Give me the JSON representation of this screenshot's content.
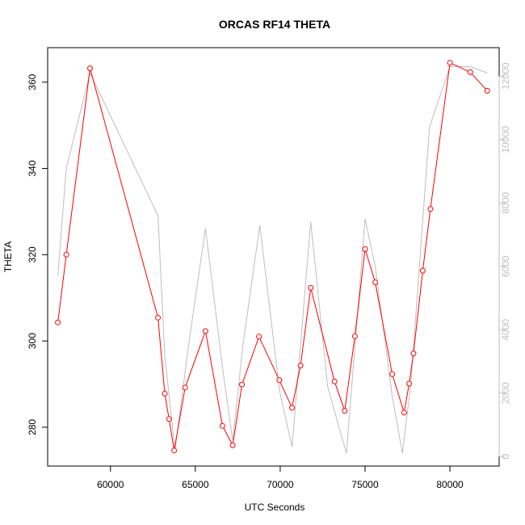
{
  "chart_data": {
    "type": "line",
    "title": "ORCAS RF14 THETA",
    "xlabel": "UTC Seconds",
    "ylabel": "THETA",
    "xlim": [
      56300,
      82900
    ],
    "ylim": [
      271,
      368
    ],
    "y2lim": [
      -300,
      12900
    ],
    "x_ticks": [
      60000,
      65000,
      70000,
      75000,
      80000
    ],
    "y_ticks": [
      280,
      300,
      320,
      340,
      360
    ],
    "y2_ticks": [
      0,
      2000,
      4000,
      6000,
      8000,
      10000,
      12000
    ],
    "grid": false,
    "legend": "none",
    "colors": {
      "theta": "#ff0000",
      "altitude": "#bebebe",
      "frame": "#000000"
    },
    "series": [
      {
        "axis": "left",
        "style": "line-with-open-circles",
        "x": [
          56900,
          57400,
          58800,
          62800,
          63200,
          63450,
          63750,
          64400,
          65600,
          66600,
          67200,
          67750,
          68750,
          69950,
          70700,
          71200,
          71800,
          73200,
          73800,
          74400,
          75000,
          75600,
          76600,
          77300,
          77600,
          77850,
          78400,
          78850,
          80000,
          81200,
          82200
        ],
        "values": [
          304.3,
          320.0,
          363.2,
          305.4,
          287.8,
          281.9,
          274.6,
          289.2,
          302.3,
          280.3,
          275.8,
          289.9,
          301.0,
          290.9,
          284.5,
          294.3,
          312.3,
          290.6,
          283.8,
          301.1,
          321.3,
          313.6,
          292.3,
          283.4,
          290.1,
          297.1,
          316.3,
          330.6,
          364.5,
          362.3,
          358.0
        ]
      },
      {
        "axis": "right",
        "style": "line",
        "x": [
          56900,
          57400,
          58800,
          62800,
          63200,
          63800,
          64600,
          65600,
          66600,
          67200,
          67800,
          68800,
          69950,
          70700,
          71800,
          72800,
          73900,
          75000,
          75600,
          76600,
          77200,
          77700,
          78800,
          80000,
          81200,
          82200
        ],
        "values": [
          5700,
          9100,
          12100,
          7600,
          3200,
          200,
          3500,
          7200,
          2800,
          500,
          3500,
          7300,
          2100,
          300,
          7400,
          2200,
          100,
          7500,
          6000,
          1900,
          100,
          2300,
          10400,
          12300,
          12300,
          12100
        ]
      }
    ]
  }
}
